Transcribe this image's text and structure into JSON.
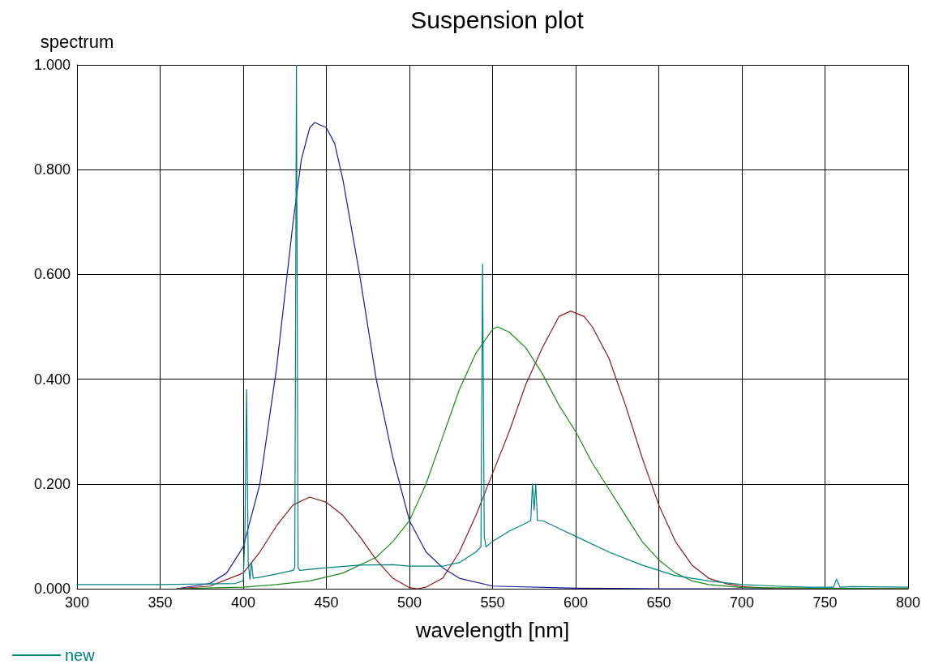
{
  "chart_data": {
    "type": "line",
    "title": "Suspension plot",
    "xlabel": "wavelength [nm]",
    "ylabel": "spectrum",
    "xlim": [
      300,
      800
    ],
    "xticks": [
      300,
      350,
      400,
      450,
      500,
      550,
      600,
      650,
      700,
      750,
      800
    ],
    "ylim": [
      0,
      1
    ],
    "yticks": [
      {
        "value": 0,
        "label": "0.000"
      },
      {
        "value": 0.2,
        "label": "0.200"
      },
      {
        "value": 0.4,
        "label": "0.400"
      },
      {
        "value": 0.6,
        "label": "0.600"
      },
      {
        "value": 0.8,
        "label": "0.800"
      },
      {
        "value": 1,
        "label": "1.000"
      }
    ],
    "grid": true,
    "legend": "bottom left",
    "marker": "none",
    "line_style": "solid",
    "series": [
      {
        "color": "#1a1a99",
        "x": [
          360,
          380,
          390,
          400,
          410,
          420,
          430,
          435,
          440,
          443,
          450,
          455,
          460,
          470,
          480,
          490,
          500,
          510,
          520,
          530,
          550,
          600,
          650,
          800
        ],
        "values": [
          0,
          0.01,
          0.03,
          0.08,
          0.2,
          0.42,
          0.7,
          0.82,
          0.88,
          0.89,
          0.88,
          0.85,
          0.78,
          0.6,
          0.4,
          0.25,
          0.13,
          0.07,
          0.04,
          0.02,
          0.005,
          0.001,
          0,
          0
        ]
      },
      {
        "color": "#8b1a1a",
        "x": [
          360,
          380,
          400,
          410,
          420,
          430,
          440,
          450,
          460,
          470,
          480,
          490,
          500,
          505,
          510,
          520,
          530,
          540,
          550,
          560,
          570,
          580,
          590,
          597,
          605,
          610,
          620,
          630,
          640,
          650,
          660,
          670,
          680,
          690,
          700,
          720,
          800
        ],
        "values": [
          0,
          0.005,
          0.03,
          0.07,
          0.12,
          0.16,
          0.175,
          0.165,
          0.14,
          0.1,
          0.055,
          0.02,
          0.002,
          0,
          0.003,
          0.02,
          0.07,
          0.14,
          0.22,
          0.3,
          0.39,
          0.46,
          0.52,
          0.53,
          0.52,
          0.5,
          0.44,
          0.35,
          0.25,
          0.16,
          0.09,
          0.045,
          0.02,
          0.01,
          0.004,
          0,
          0
        ]
      },
      {
        "color": "#1a8a1a",
        "x": [
          360,
          400,
          420,
          440,
          460,
          480,
          490,
          500,
          510,
          520,
          530,
          540,
          550,
          553,
          560,
          570,
          580,
          590,
          600,
          610,
          620,
          630,
          640,
          650,
          660,
          670,
          680,
          700,
          800
        ],
        "values": [
          0,
          0.003,
          0.008,
          0.015,
          0.03,
          0.06,
          0.09,
          0.13,
          0.2,
          0.29,
          0.38,
          0.45,
          0.495,
          0.5,
          0.49,
          0.46,
          0.41,
          0.35,
          0.3,
          0.24,
          0.19,
          0.14,
          0.09,
          0.055,
          0.03,
          0.015,
          0.008,
          0.002,
          0
        ]
      },
      {
        "name": "new",
        "color": "#008080",
        "x": [
          300,
          350,
          395,
          400,
          401,
          402,
          403,
          404,
          405,
          406,
          410,
          420,
          430,
          431,
          432,
          433,
          434,
          440,
          450,
          470,
          490,
          500,
          520,
          530,
          540,
          543,
          544,
          545,
          546,
          550,
          560,
          570,
          573,
          574,
          575,
          576,
          577,
          580,
          590,
          600,
          620,
          640,
          660,
          680,
          700,
          720,
          740,
          755,
          757,
          759,
          766,
          800
        ],
        "values": [
          0.008,
          0.008,
          0.01,
          0.015,
          0.1,
          0.38,
          0.05,
          0.018,
          0.05,
          0.02,
          0.022,
          0.028,
          0.035,
          0.04,
          1,
          0.04,
          0.035,
          0.037,
          0.04,
          0.045,
          0.046,
          0.043,
          0.043,
          0.05,
          0.07,
          0.08,
          0.62,
          0.1,
          0.08,
          0.09,
          0.11,
          0.125,
          0.13,
          0.2,
          0.15,
          0.2,
          0.13,
          0.13,
          0.115,
          0.1,
          0.07,
          0.045,
          0.025,
          0.015,
          0.008,
          0.005,
          0.003,
          0.003,
          0.018,
          0.003,
          0.004,
          0.003
        ]
      }
    ]
  }
}
